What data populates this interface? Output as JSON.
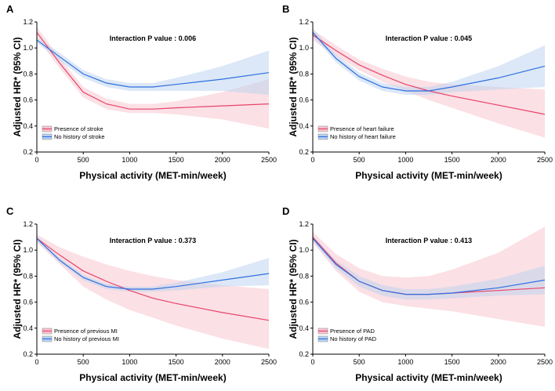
{
  "colors": {
    "series1_line": "#e8436a",
    "series1_band": "#f7c6d0",
    "series2_line": "#2f6fe0",
    "series2_band": "#b9d2f0"
  },
  "chart_data": [
    {
      "type": "line",
      "panel": "A",
      "annotation": "Interaction P value : 0.006",
      "xlabel": "Physical activity (MET-min/week)",
      "ylabel": "Adjusted HR* (95% CI)",
      "xlim": [
        0,
        2500
      ],
      "ylim": [
        0.2,
        1.2
      ],
      "xticks": [
        0,
        500,
        1000,
        1500,
        2000,
        2500
      ],
      "yticks": [
        0.2,
        0.4,
        0.6,
        0.8,
        1.0,
        1.2
      ],
      "legend_position": "bottom-left",
      "series": [
        {
          "name": "Presence of stroke",
          "x": [
            0,
            250,
            500,
            750,
            1000,
            1250,
            1500,
            2000,
            2500
          ],
          "y": [
            1.12,
            0.88,
            0.66,
            0.57,
            0.53,
            0.53,
            0.54,
            0.555,
            0.57
          ],
          "lower": [
            1.08,
            0.84,
            0.62,
            0.53,
            0.5,
            0.5,
            0.49,
            0.45,
            0.38
          ],
          "upper": [
            1.16,
            0.92,
            0.7,
            0.61,
            0.57,
            0.57,
            0.59,
            0.66,
            0.76
          ]
        },
        {
          "name": "No history of stroke",
          "x": [
            0,
            250,
            500,
            750,
            1000,
            1250,
            1500,
            2000,
            2500
          ],
          "y": [
            1.06,
            0.93,
            0.8,
            0.73,
            0.7,
            0.7,
            0.72,
            0.76,
            0.81
          ],
          "lower": [
            1.04,
            0.9,
            0.77,
            0.7,
            0.67,
            0.67,
            0.67,
            0.67,
            0.64
          ],
          "upper": [
            1.08,
            0.96,
            0.83,
            0.76,
            0.73,
            0.73,
            0.77,
            0.86,
            0.98
          ]
        }
      ]
    },
    {
      "type": "line",
      "panel": "B",
      "annotation": "Interaction P value : 0.045",
      "xlabel": "Physical activity (MET-min/week)",
      "ylabel": "Adjusted HR* (95% CI)",
      "xlim": [
        0,
        2500
      ],
      "ylim": [
        0.2,
        1.2
      ],
      "xticks": [
        0,
        500,
        1000,
        1500,
        2000,
        2500
      ],
      "yticks": [
        0.2,
        0.4,
        0.6,
        0.8,
        1.0,
        1.2
      ],
      "legend_position": "bottom-left",
      "series": [
        {
          "name": "Presence of heart failure",
          "x": [
            0,
            250,
            500,
            750,
            1000,
            1250,
            1500,
            2000,
            2500
          ],
          "y": [
            1.1,
            0.98,
            0.87,
            0.79,
            0.72,
            0.67,
            0.63,
            0.56,
            0.49
          ],
          "lower": [
            1.06,
            0.94,
            0.83,
            0.74,
            0.67,
            0.6,
            0.54,
            0.42,
            0.31
          ],
          "upper": [
            1.14,
            1.02,
            0.91,
            0.84,
            0.78,
            0.74,
            0.72,
            0.7,
            0.68
          ]
        },
        {
          "name": "No history of heart failure",
          "x": [
            0,
            250,
            500,
            750,
            1000,
            1250,
            1500,
            2000,
            2500
          ],
          "y": [
            1.12,
            0.92,
            0.78,
            0.7,
            0.67,
            0.67,
            0.7,
            0.77,
            0.86
          ],
          "lower": [
            1.09,
            0.89,
            0.75,
            0.67,
            0.64,
            0.64,
            0.66,
            0.68,
            0.7
          ],
          "upper": [
            1.15,
            0.95,
            0.81,
            0.73,
            0.7,
            0.7,
            0.74,
            0.86,
            1.02
          ]
        }
      ]
    },
    {
      "type": "line",
      "panel": "C",
      "annotation": "Interaction P value : 0.373",
      "xlabel": "Physical activity (MET-min/week)",
      "ylabel": "Adjusted HR* (95% CI)",
      "xlim": [
        0,
        2500
      ],
      "ylim": [
        0.2,
        1.2
      ],
      "xticks": [
        0,
        500,
        1000,
        1500,
        2000,
        2500
      ],
      "yticks": [
        0.2,
        0.4,
        0.6,
        0.8,
        1.0,
        1.2
      ],
      "legend_position": "bottom-left",
      "series": [
        {
          "name": "Presence of previous MI",
          "x": [
            0,
            250,
            500,
            750,
            1000,
            1250,
            1500,
            2000,
            2500
          ],
          "y": [
            1.09,
            0.96,
            0.84,
            0.76,
            0.69,
            0.63,
            0.59,
            0.52,
            0.46
          ],
          "lower": [
            1.06,
            0.89,
            0.72,
            0.62,
            0.54,
            0.48,
            0.42,
            0.32,
            0.24
          ],
          "upper": [
            1.12,
            1.02,
            0.95,
            0.89,
            0.84,
            0.8,
            0.77,
            0.73,
            0.7
          ]
        },
        {
          "name": "No history of previous MI",
          "x": [
            0,
            250,
            500,
            750,
            1000,
            1250,
            1500,
            2000,
            2500
          ],
          "y": [
            1.09,
            0.92,
            0.79,
            0.72,
            0.7,
            0.7,
            0.72,
            0.77,
            0.82
          ],
          "lower": [
            1.07,
            0.9,
            0.77,
            0.7,
            0.68,
            0.68,
            0.69,
            0.72,
            0.73
          ],
          "upper": [
            1.11,
            0.94,
            0.81,
            0.74,
            0.72,
            0.72,
            0.75,
            0.83,
            0.94
          ]
        }
      ]
    },
    {
      "type": "line",
      "panel": "D",
      "annotation": "Interaction P value : 0.413",
      "xlabel": "Physical activity (MET-min/week)",
      "ylabel": "Adjusted HR* (95% CI)",
      "xlim": [
        0,
        2500
      ],
      "ylim": [
        0.2,
        1.2
      ],
      "xticks": [
        0,
        500,
        1000,
        1500,
        2000,
        2500
      ],
      "yticks": [
        0.2,
        0.4,
        0.6,
        0.8,
        1.0,
        1.2
      ],
      "legend_position": "bottom-left",
      "series": [
        {
          "name": "Presence of PAD",
          "x": [
            0,
            250,
            500,
            750,
            1000,
            1250,
            1500,
            2000,
            2500
          ],
          "y": [
            1.1,
            0.9,
            0.76,
            0.69,
            0.66,
            0.66,
            0.67,
            0.69,
            0.71
          ],
          "lower": [
            1.06,
            0.84,
            0.68,
            0.6,
            0.57,
            0.55,
            0.53,
            0.47,
            0.41
          ],
          "upper": [
            1.14,
            0.97,
            0.86,
            0.8,
            0.79,
            0.8,
            0.85,
            0.98,
            1.18
          ]
        },
        {
          "name": "No history of PAD",
          "x": [
            0,
            250,
            500,
            750,
            1000,
            1250,
            1500,
            2000,
            2500
          ],
          "y": [
            1.09,
            0.89,
            0.76,
            0.69,
            0.66,
            0.66,
            0.67,
            0.71,
            0.77
          ],
          "lower": [
            1.07,
            0.86,
            0.72,
            0.65,
            0.62,
            0.62,
            0.63,
            0.65,
            0.66
          ],
          "upper": [
            1.11,
            0.92,
            0.8,
            0.73,
            0.7,
            0.7,
            0.72,
            0.78,
            0.88
          ]
        }
      ]
    }
  ]
}
